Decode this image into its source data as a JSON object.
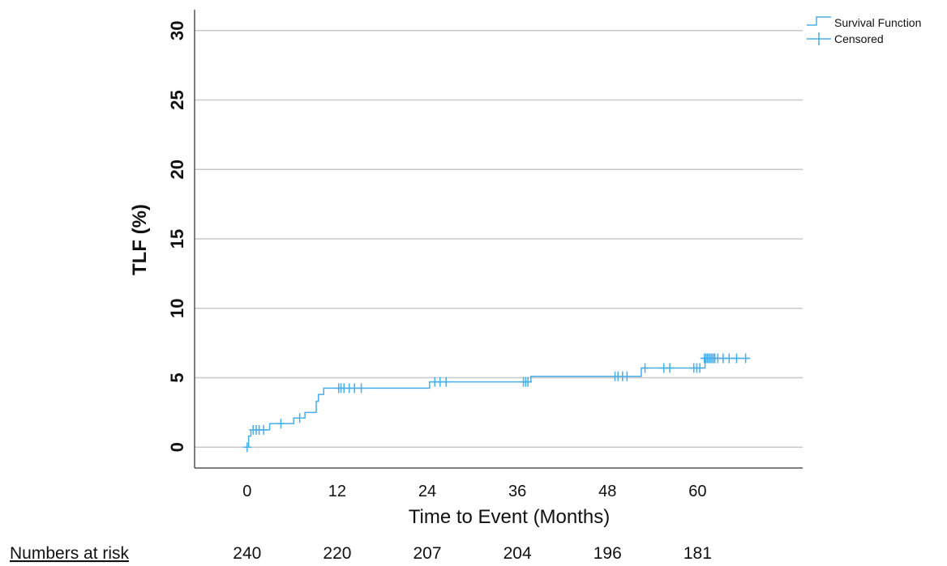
{
  "chart_data": {
    "type": "line",
    "xlabel": "Time to Event (Months)",
    "ylabel": "TLF (%)",
    "xlim": [
      -7,
      74
    ],
    "ylim": [
      -1.5,
      31.5
    ],
    "x_ticks": [
      0,
      12,
      24,
      36,
      48,
      60
    ],
    "y_ticks": [
      0,
      5,
      10,
      15,
      20,
      25,
      30
    ],
    "grid": "horizontal",
    "legend_position": "top-right",
    "series": [
      {
        "name": "Survival Function",
        "color": "#4aaee8",
        "step_points": [
          [
            0,
            0
          ],
          [
            0.2,
            0.8
          ],
          [
            0.5,
            1.25
          ],
          [
            2.0,
            1.25
          ],
          [
            2.3,
            1.25
          ],
          [
            3.0,
            1.7
          ],
          [
            6.0,
            1.7
          ],
          [
            6.2,
            2.1
          ],
          [
            7.5,
            2.1
          ],
          [
            7.7,
            2.5
          ],
          [
            9.0,
            2.5
          ],
          [
            9.2,
            3.3
          ],
          [
            9.5,
            3.8
          ],
          [
            10.0,
            3.8
          ],
          [
            10.2,
            4.25
          ],
          [
            24.0,
            4.25
          ],
          [
            24.3,
            4.7
          ],
          [
            37.5,
            4.7
          ],
          [
            37.8,
            5.1
          ],
          [
            52.0,
            5.1
          ],
          [
            52.5,
            5.7
          ],
          [
            60.5,
            5.7
          ],
          [
            61.0,
            6.4
          ],
          [
            67,
            6.4
          ]
        ]
      },
      {
        "name": "Censored",
        "color": "#4aaee8",
        "censored_points": [
          [
            0,
            0
          ],
          [
            0.8,
            1.25
          ],
          [
            1.2,
            1.25
          ],
          [
            1.6,
            1.25
          ],
          [
            2.2,
            1.25
          ],
          [
            4.5,
            1.7
          ],
          [
            7.0,
            2.1
          ],
          [
            12.2,
            4.25
          ],
          [
            12.5,
            4.25
          ],
          [
            12.9,
            4.25
          ],
          [
            13.6,
            4.25
          ],
          [
            14.3,
            4.25
          ],
          [
            15.2,
            4.25
          ],
          [
            25.0,
            4.7
          ],
          [
            25.7,
            4.7
          ],
          [
            26.5,
            4.7
          ],
          [
            36.8,
            4.7
          ],
          [
            37.1,
            4.7
          ],
          [
            37.4,
            4.7
          ],
          [
            49.0,
            5.1
          ],
          [
            49.4,
            5.1
          ],
          [
            50.0,
            5.1
          ],
          [
            50.6,
            5.1
          ],
          [
            53.0,
            5.7
          ],
          [
            55.5,
            5.7
          ],
          [
            56.3,
            5.7
          ],
          [
            59.5,
            5.7
          ],
          [
            59.9,
            5.7
          ],
          [
            60.3,
            5.7
          ],
          [
            60.9,
            6.4
          ],
          [
            61.1,
            6.4
          ],
          [
            61.3,
            6.4
          ],
          [
            61.5,
            6.4
          ],
          [
            61.7,
            6.4
          ],
          [
            61.9,
            6.4
          ],
          [
            62.1,
            6.4
          ],
          [
            62.3,
            6.4
          ],
          [
            62.7,
            6.4
          ],
          [
            63.4,
            6.4
          ],
          [
            64.2,
            6.4
          ],
          [
            65.2,
            6.4
          ],
          [
            66.4,
            6.4
          ]
        ]
      }
    ]
  },
  "numbers_at_risk": {
    "title": "Numbers at risk",
    "values": [
      "240",
      "220",
      "207",
      "204",
      "196",
      "181"
    ]
  }
}
